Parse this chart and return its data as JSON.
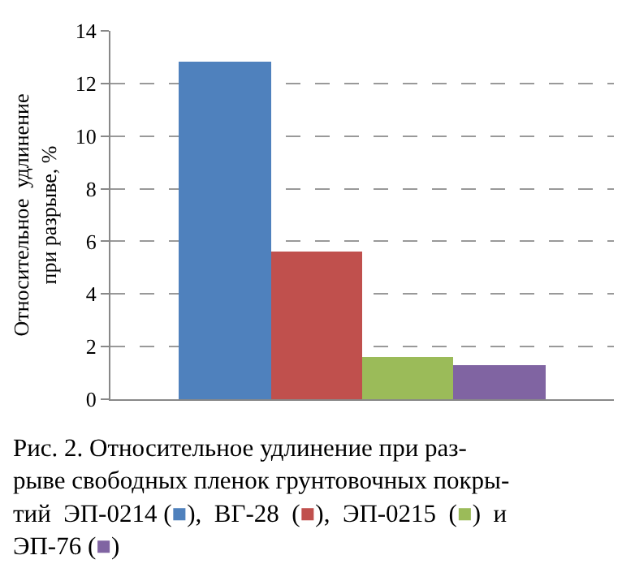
{
  "chart_data": {
    "type": "bar",
    "ylabel": "Относительное  удлинение\nпри разрыве, %",
    "categories": [
      null,
      null,
      null,
      null
    ],
    "values": [
      12.8,
      5.6,
      1.6,
      1.3
    ],
    "colors": [
      "#4f81bd",
      "#c0504d",
      "#9bbb59",
      "#8064a2"
    ],
    "ylim": [
      0,
      14
    ],
    "yticks": [
      0,
      2,
      4,
      6,
      8,
      10,
      12,
      14
    ],
    "grid": "y",
    "annotations": [
      "Рис. 2. Относительное удлинение при раз-\nрыве свободных пленок грунтовочных покры-\nтий  ЭП-0214 (■),  ВГ-28  (■),  ЭП-0215  (■)  и\nЭП-76 (■)"
    ]
  }
}
